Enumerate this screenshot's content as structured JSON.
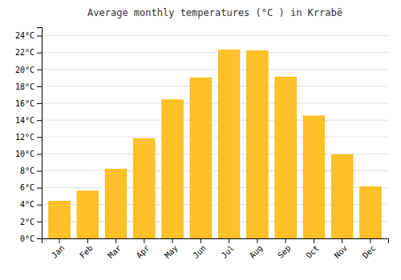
{
  "chart_data": {
    "type": "bar",
    "title": "Average monthly temperatures (°C ) in Krrabë",
    "categories": [
      "Jan",
      "Feb",
      "Mar",
      "Apr",
      "May",
      "Jun",
      "Jul",
      "Aug",
      "Sep",
      "Oct",
      "Nov",
      "Dec"
    ],
    "values": [
      4.4,
      5.6,
      8.2,
      11.8,
      16.4,
      19.0,
      22.3,
      22.2,
      19.1,
      14.5,
      9.9,
      6.1
    ],
    "color": "#FFC125",
    "ylim": [
      0,
      25
    ],
    "yticks": [
      {
        "value": 0,
        "label": "0°C"
      },
      {
        "value": 2,
        "label": "2°C"
      },
      {
        "value": 4,
        "label": "4°C"
      },
      {
        "value": 6,
        "label": "6°C"
      },
      {
        "value": 8,
        "label": "8°C"
      },
      {
        "value": 10,
        "label": "10°C"
      },
      {
        "value": 12,
        "label": "12°C"
      },
      {
        "value": 14,
        "label": "14°C"
      },
      {
        "value": 16,
        "label": "16°C"
      },
      {
        "value": 18,
        "label": "18°C"
      },
      {
        "value": 20,
        "label": "20°C"
      },
      {
        "value": 22,
        "label": "22°C"
      },
      {
        "value": 24,
        "label": "24°C"
      }
    ],
    "grid": true
  }
}
